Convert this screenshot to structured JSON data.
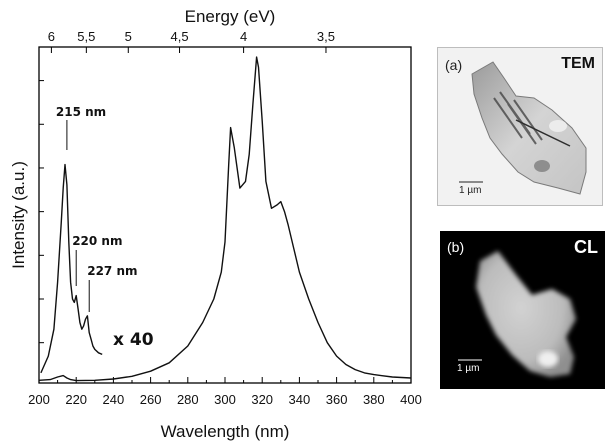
{
  "chart_data": {
    "type": "line",
    "xlabel": "Wavelength (nm)",
    "ylabel": "Intensity (a.u.)",
    "top_axis_label": "Energy (eV)",
    "xlim": [
      200,
      400
    ],
    "ylim": [
      0,
      1
    ],
    "x_ticks": [
      200,
      220,
      240,
      260,
      280,
      300,
      320,
      340,
      360,
      380,
      400
    ],
    "top_ticks": [
      {
        "label": "6",
        "energy": 6.0
      },
      {
        "label": "5,5",
        "energy": 5.5
      },
      {
        "label": "5",
        "energy": 5.0
      },
      {
        "label": "4,5",
        "energy": 4.5
      },
      {
        "label": "4",
        "energy": 4.0
      },
      {
        "label": "3,5",
        "energy": 3.5
      }
    ],
    "y_ticks": [
      0.12,
      0.25,
      0.38,
      0.51,
      0.64,
      0.77,
      0.9
    ],
    "grid": false,
    "series": [
      {
        "key": "main",
        "x": [
          200,
          206,
          210,
          213,
          215,
          217,
          220,
          230,
          240,
          250,
          260,
          270,
          280,
          288,
          294,
          298,
          300,
          302,
          303,
          305,
          308,
          311,
          313,
          315,
          317,
          318,
          320,
          322,
          325,
          328,
          330,
          332,
          334,
          337,
          340,
          345,
          350,
          355,
          360,
          365,
          370,
          375,
          380,
          390,
          400
        ],
        "y": [
          0.008,
          0.01,
          0.018,
          0.022,
          0.015,
          0.01,
          0.007,
          0.008,
          0.012,
          0.02,
          0.035,
          0.06,
          0.11,
          0.18,
          0.25,
          0.33,
          0.42,
          0.65,
          0.76,
          0.7,
          0.58,
          0.6,
          0.68,
          0.83,
          0.97,
          0.94,
          0.78,
          0.6,
          0.52,
          0.53,
          0.54,
          0.51,
          0.47,
          0.4,
          0.33,
          0.25,
          0.18,
          0.12,
          0.08,
          0.055,
          0.04,
          0.03,
          0.025,
          0.018,
          0.015
        ]
      },
      {
        "key": "x40",
        "x": [
          201,
          205,
          208,
          210,
          212,
          213,
          214,
          215,
          216,
          217,
          218,
          219,
          220,
          221,
          222,
          223,
          224,
          225,
          226,
          227,
          228,
          229,
          230,
          232,
          234
        ],
        "y": [
          0.03,
          0.08,
          0.16,
          0.3,
          0.48,
          0.58,
          0.65,
          0.59,
          0.42,
          0.3,
          0.25,
          0.24,
          0.26,
          0.22,
          0.18,
          0.16,
          0.17,
          0.19,
          0.2,
          0.15,
          0.13,
          0.11,
          0.1,
          0.09,
          0.085
        ]
      }
    ],
    "annotations": [
      {
        "text": "215 nm",
        "x": 215,
        "y": 0.65
      },
      {
        "text": "220 nm",
        "x": 220,
        "y": 0.26
      },
      {
        "text": "227 nm",
        "x": 227,
        "y": 0.2
      }
    ],
    "scale_note": "x 40"
  },
  "panels": {
    "tem": {
      "letter": "(a)",
      "title": "TEM",
      "scale_bar": "1 µm"
    },
    "cl": {
      "letter": "(b)",
      "title": "CL",
      "scale_bar": "1 µm"
    }
  }
}
